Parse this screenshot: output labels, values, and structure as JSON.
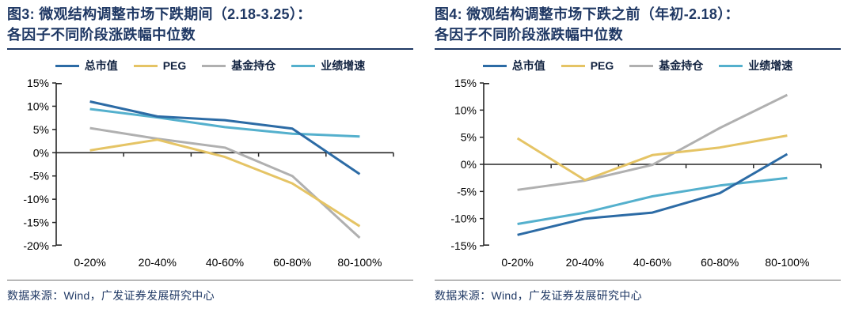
{
  "style": {
    "background": "#ffffff",
    "title_color": "#1f3864",
    "title_rule_color": "#1f3864",
    "footer_rule_color": "#6e6e6e",
    "legend_label_color": "#10213f",
    "axis_color": "#262626",
    "tick_label_color": "#000000"
  },
  "legend": [
    {
      "label": "总市值",
      "color": "#2c6ba5"
    },
    {
      "label": "PEG",
      "color": "#e5c465"
    },
    {
      "label": "基金持仓",
      "color": "#b0b0b0"
    },
    {
      "label": "业绩增速",
      "color": "#54b0cd"
    }
  ],
  "charts": [
    {
      "title_line1": "图3: 微观结构调整市场下跌期间（2.18-3.25）：",
      "title_line2": "各因子不同阶段涨跌幅中位数",
      "source": "数据来源：Wind，广发证券发展研究中心",
      "chart_data": {
        "type": "line",
        "title": "微观结构调整市场下跌期间（2.18-3.25）：各因子不同阶段涨跌幅中位数",
        "categories": [
          "0-20%",
          "20-40%",
          "40-60%",
          "60-80%",
          "80-100%"
        ],
        "series": [
          {
            "name": "总市值",
            "color": "#2c6ba5",
            "values": [
              11.0,
              7.8,
              7.0,
              5.2,
              -4.6
            ]
          },
          {
            "name": "PEG",
            "color": "#e5c465",
            "values": [
              0.5,
              2.8,
              -0.9,
              -6.6,
              -15.8
            ]
          },
          {
            "name": "基金持仓",
            "color": "#b0b0b0",
            "values": [
              5.3,
              3.0,
              1.1,
              -5.0,
              -18.3
            ]
          },
          {
            "name": "业绩增速",
            "color": "#54b0cd",
            "values": [
              9.4,
              7.6,
              5.5,
              4.1,
              3.5
            ]
          }
        ],
        "xlabel": "",
        "ylabel": "",
        "ylim": [
          -20,
          15
        ],
        "ytick_step": 5,
        "ytick_suffix": "%",
        "grid": false,
        "zero_axis": true,
        "legend_position": "top"
      }
    },
    {
      "title_line1": "图4: 微观结构调整市场下跌之前（年初-2.18）：",
      "title_line2": "各因子不同阶段涨跌幅中位数",
      "source": "数据来源：Wind，广发证券发展研究中心",
      "chart_data": {
        "type": "line",
        "title": "微观结构调整市场下跌之前（年初-2.18）：各因子不同阶段涨跌幅中位数",
        "categories": [
          "0-20%",
          "20-40%",
          "40-60%",
          "60-80%",
          "80-100%"
        ],
        "series": [
          {
            "name": "总市值",
            "color": "#2c6ba5",
            "values": [
              -13.0,
              -10.0,
              -8.9,
              -5.3,
              1.9
            ]
          },
          {
            "name": "PEG",
            "color": "#e5c465",
            "values": [
              4.8,
              -2.9,
              1.7,
              3.1,
              5.3
            ]
          },
          {
            "name": "基金持仓",
            "color": "#b0b0b0",
            "values": [
              -4.7,
              -3.0,
              -0.1,
              6.7,
              12.8
            ]
          },
          {
            "name": "业绩增速",
            "color": "#54b0cd",
            "values": [
              -11.0,
              -8.9,
              -5.9,
              -3.9,
              -2.5
            ]
          }
        ],
        "xlabel": "",
        "ylabel": "",
        "ylim": [
          -15,
          15
        ],
        "ytick_step": 5,
        "ytick_suffix": "%",
        "grid": false,
        "zero_axis": true,
        "legend_position": "top"
      }
    }
  ]
}
